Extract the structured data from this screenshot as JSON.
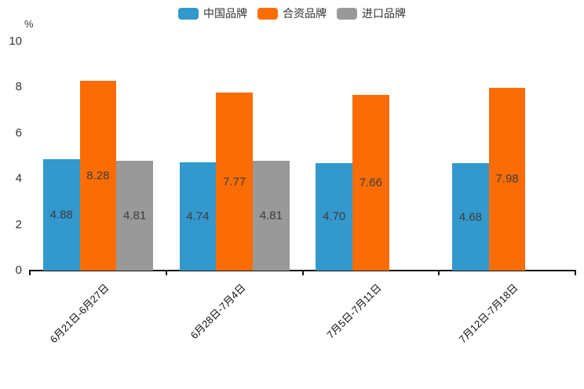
{
  "legend": {
    "items": [
      {
        "label": "中国品牌",
        "color": "#3398cc"
      },
      {
        "label": "合资品牌",
        "color": "#fb6d04"
      },
      {
        "label": "进口品牌",
        "color": "#999999"
      }
    ]
  },
  "y_axis": {
    "unit": "%",
    "ticks": [
      0,
      2,
      4,
      6,
      8,
      10
    ]
  },
  "chart_data": {
    "type": "bar",
    "title": "",
    "xlabel": "",
    "ylabel": "%",
    "ylim": [
      0,
      10
    ],
    "grid": false,
    "legend_position": "top",
    "categories": [
      "6月21日-6月27日",
      "6月28日-7月4日",
      "7月5日-7月11日",
      "7月12日-7月18日"
    ],
    "series": [
      {
        "name": "中国品牌",
        "color": "#3398cc",
        "values": [
          4.88,
          4.74,
          4.7,
          4.68
        ]
      },
      {
        "name": "合资品牌",
        "color": "#fb6d04",
        "values": [
          8.28,
          7.77,
          7.66,
          7.98
        ]
      },
      {
        "name": "进口品牌",
        "color": "#999999",
        "values": [
          4.81,
          4.81,
          null,
          null
        ]
      }
    ]
  }
}
